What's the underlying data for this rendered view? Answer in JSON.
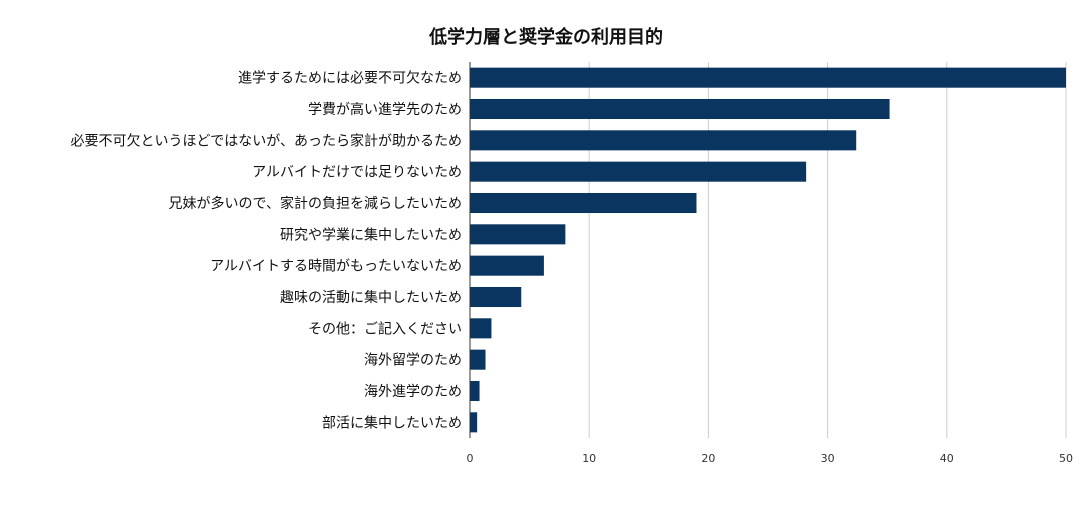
{
  "chart_data": {
    "type": "bar",
    "orientation": "horizontal",
    "title": "低学力層と奨学金の利用目的",
    "xlabel": "",
    "ylabel": "",
    "xlim": [
      0,
      50
    ],
    "x_ticks": [
      0,
      10,
      20,
      30,
      40,
      50
    ],
    "grid": true,
    "legend": "none",
    "categories": [
      "進学するためには必要不可欠なため",
      "学費が高い進学先のため",
      "必要不可欠というほどではないが、あったら家計が助かるため",
      "アルバイトだけでは足りないため",
      "兄妹が多いので、家計の負担を減らしたいため",
      "研究や学業に集中したいため",
      "アルバイトする時間がもったいないため",
      "趣味の活動に集中したいため",
      "その他：ご記入ください",
      "海外留学のため",
      "海外進学のため",
      "部活に集中したいため"
    ],
    "values": [
      50,
      35.2,
      32.4,
      28.2,
      19,
      8,
      6.2,
      4.3,
      1.8,
      1.3,
      0.8,
      0.6
    ],
    "colors": {
      "bar": "#0a3560",
      "grid": "#cccccc",
      "axis": "#333333",
      "text": "#111111"
    }
  }
}
